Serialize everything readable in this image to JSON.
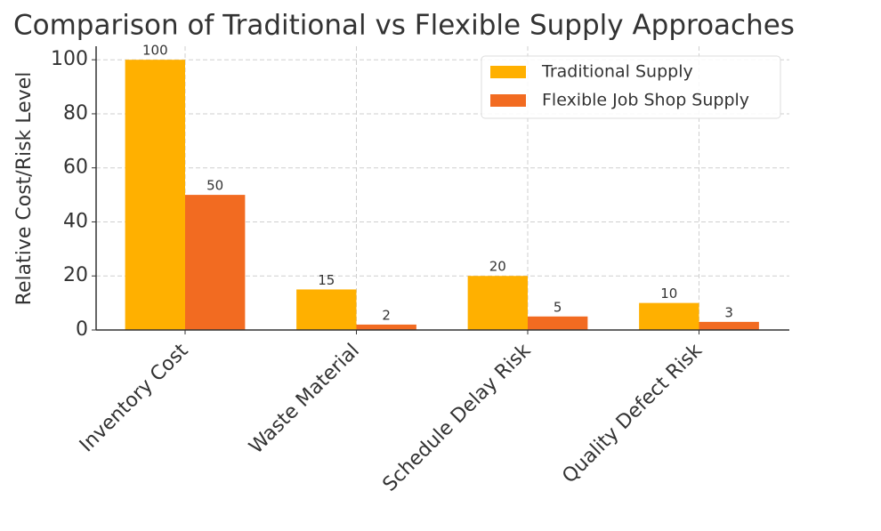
{
  "chart_data": {
    "type": "bar",
    "title": "Comparison of Traditional vs Flexible Supply Approaches",
    "y_label": "Relative Cost/Risk Level",
    "categories": [
      "Inventory Cost",
      "Waste Material",
      "Schedule Delay Risk",
      "Quality Defect Risk"
    ],
    "series": [
      {
        "name": "Traditional Supply",
        "color": "#ffb000",
        "values": [
          100,
          15,
          20,
          10
        ]
      },
      {
        "name": "Flexible Job Shop Supply",
        "color": "#f26b21",
        "values": [
          50,
          2,
          5,
          3
        ]
      }
    ],
    "ylim": [
      0,
      105
    ],
    "yticks": [
      0,
      20,
      40,
      60,
      80,
      100
    ],
    "grid": true,
    "legend": "upper right"
  }
}
